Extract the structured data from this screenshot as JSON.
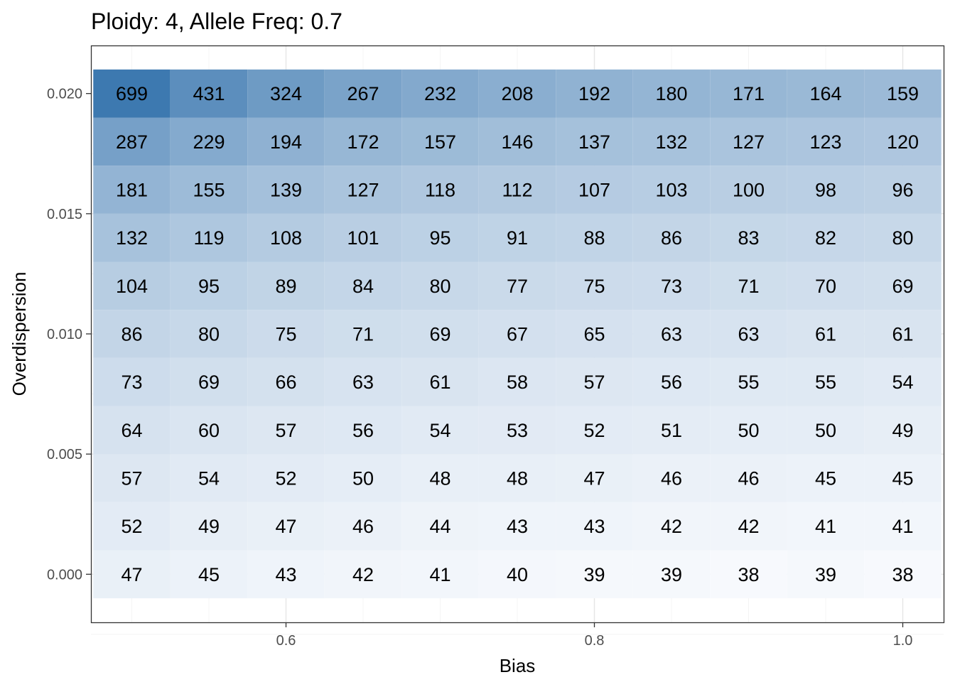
{
  "chart_data": {
    "type": "heatmap",
    "title": "Ploidy: 4, Allele Freq: 0.7",
    "xlabel": "Bias",
    "ylabel": "Overdispersion",
    "x": [
      0.5,
      0.55,
      0.6,
      0.65,
      0.7,
      0.75,
      0.8,
      0.85,
      0.9,
      0.95,
      1.0
    ],
    "y": [
      0.0,
      0.002,
      0.004,
      0.006,
      0.008,
      0.01,
      0.012,
      0.014,
      0.016,
      0.018,
      0.02
    ],
    "xlim": [
      0.4735,
      1.0265
    ],
    "ylim": [
      -0.002,
      0.022
    ],
    "x_ticks": [
      0.6,
      0.8,
      1.0
    ],
    "x_tick_labels": [
      "0.6",
      "0.8",
      "1.0"
    ],
    "y_ticks": [
      0.0,
      0.005,
      0.01,
      0.015,
      0.02
    ],
    "y_tick_labels": [
      "0.000",
      "0.005",
      "0.010",
      "0.015",
      "0.020"
    ],
    "values": [
      [
        47,
        45,
        43,
        42,
        41,
        40,
        39,
        39,
        38,
        39,
        38
      ],
      [
        52,
        49,
        47,
        46,
        44,
        43,
        43,
        42,
        42,
        41,
        41
      ],
      [
        57,
        54,
        52,
        50,
        48,
        48,
        47,
        46,
        46,
        45,
        45
      ],
      [
        64,
        60,
        57,
        56,
        54,
        53,
        52,
        51,
        50,
        50,
        49
      ],
      [
        73,
        69,
        66,
        63,
        61,
        58,
        57,
        56,
        55,
        55,
        54
      ],
      [
        86,
        80,
        75,
        71,
        69,
        67,
        65,
        63,
        63,
        61,
        61
      ],
      [
        104,
        95,
        89,
        84,
        80,
        77,
        75,
        73,
        71,
        70,
        69
      ],
      [
        132,
        119,
        108,
        101,
        95,
        91,
        88,
        86,
        83,
        82,
        80
      ],
      [
        181,
        155,
        139,
        127,
        118,
        112,
        107,
        103,
        100,
        98,
        96
      ],
      [
        287,
        229,
        194,
        172,
        157,
        146,
        137,
        132,
        127,
        123,
        120
      ],
      [
        699,
        431,
        324,
        267,
        232,
        208,
        192,
        180,
        171,
        164,
        159
      ]
    ],
    "color_low": "#f7f9fd",
    "color_high": "#3d79b0",
    "color_scale": "log",
    "grid": true,
    "legend": "none"
  }
}
